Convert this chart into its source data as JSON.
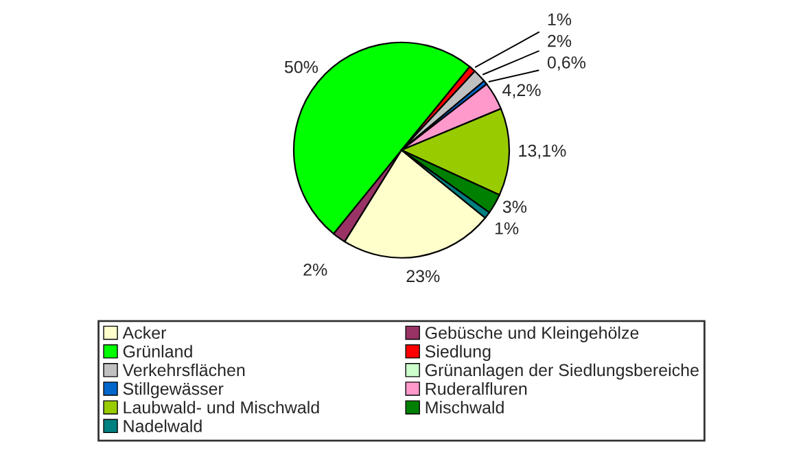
{
  "chart_data": {
    "type": "pie",
    "categories": [
      "Acker",
      "Gebüsche und Kleingehölze",
      "Grünland",
      "Siedlung",
      "Verkehrsflächen",
      "Grünanlagen der Siedlungsbereiche",
      "Stillgewässer",
      "Ruderalfluren",
      "Laubwald- und Mischwald",
      "Mischwald",
      "Nadelwald"
    ],
    "values": [
      23,
      2,
      50,
      1,
      2,
      0,
      0.6,
      4.2,
      13.1,
      3,
      1
    ],
    "value_labels": [
      "23%",
      "2%",
      "50%",
      "1%",
      "2%",
      null,
      "0,6%",
      "4,2%",
      "13,1%",
      "3%",
      "1%"
    ],
    "colors": [
      "#ffffcc",
      "#993366",
      "#00ff00",
      "#ff0000",
      "#c0c0c0",
      "#ccffcc",
      "#0066cc",
      "#ff99cc",
      "#99cc00",
      "#008000",
      "#008080"
    ],
    "legend": "bottom"
  }
}
